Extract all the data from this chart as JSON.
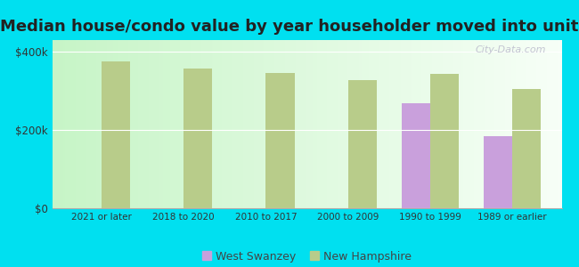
{
  "title": "Median house/condo value by year householder moved into unit",
  "categories": [
    "2021 or later",
    "2018 to 2020",
    "2010 to 2017",
    "2000 to 2009",
    "1990 to 1999",
    "1989 or earlier"
  ],
  "west_swanzey": [
    null,
    null,
    null,
    null,
    268000,
    185000
  ],
  "new_hampshire": [
    375000,
    358000,
    345000,
    328000,
    344000,
    305000
  ],
  "ws_color": "#c9a0dc",
  "nh_color": "#b8cc8a",
  "bg_outer": "#00e0f0",
  "bg_plot_left": "#b8f0b8",
  "bg_plot_right": "#f8fef8",
  "title_fontsize": 13,
  "ylabel_ticks": [
    0,
    200000,
    400000
  ],
  "ylabel_labels": [
    "$0",
    "$200k",
    "$400k"
  ],
  "ylim": [
    0,
    430000
  ],
  "bar_width": 0.35,
  "legend_ws_label": "West Swanzey",
  "legend_nh_label": "New Hampshire",
  "watermark": "City-Data.com"
}
